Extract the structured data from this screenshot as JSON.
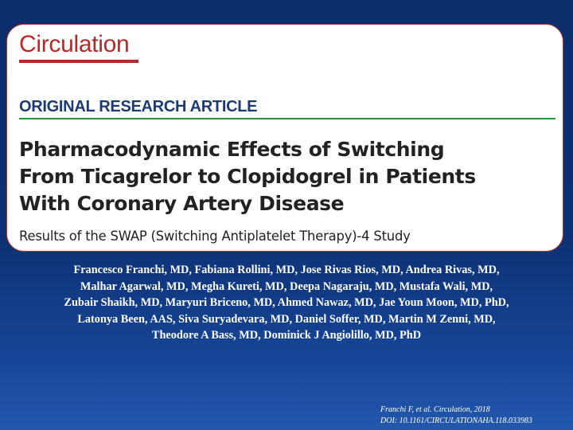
{
  "card": {
    "journal": "Circulation",
    "article_type": "ORIGINAL RESEARCH ARTICLE",
    "title_lines": [
      "Pharmacodynamic Effects of Switching",
      "From Ticagrelor to Clopidogrel in Patients",
      "With Coronary Artery Disease"
    ],
    "subtitle": "Results of the SWAP (Switching Antiplatelet Therapy)-4 Study"
  },
  "authors": [
    "Francesco Franchi, MD, Fabiana Rollini, MD, Jose Rivas Rios, MD, Andrea Rivas, MD,",
    "Malhar Agarwal, MD, Megha Kureti, MD, Deepa Nagaraju, MD, Mustafa Wali, MD,",
    "Zubair Shaikh, MD, Maryuri Briceno, MD, Ahmed Nawaz, MD, Jae Youn Moon, MD, PhD,",
    "Latonya Been, AAS, Siva Suryadevara, MD, Daniel Soffer, MD, Martin M Zenni, MD,",
    "Theodore A Bass, MD, Dominick J Angiolillo, MD, PhD"
  ],
  "citation": {
    "reference": "Franchi F, et al. Circulation, 2018",
    "doi": "DOI: 10.1161/CIRCULATIONAHA.118.033983"
  },
  "colors": {
    "background": "#0d3072",
    "journal_red": "#b22a2a",
    "article_type_blue": "#1d3b73",
    "rule_green": "#2f8f3a"
  }
}
